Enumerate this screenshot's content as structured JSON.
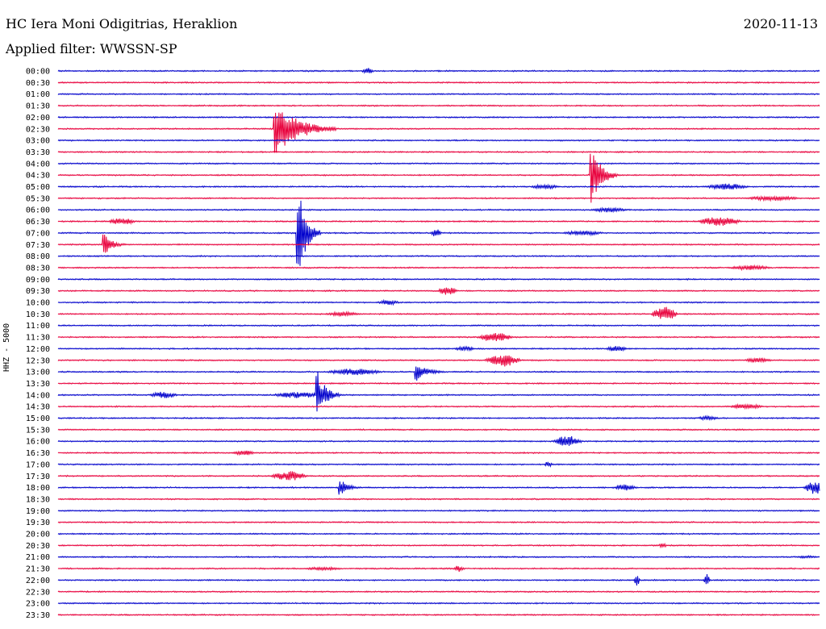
{
  "header": {
    "station": "HC Iera Moni Odigitrias, Heraklion",
    "date": "2020-11-13",
    "filter": "Applied filter: WWSSN-SP"
  },
  "chart_data": {
    "type": "line",
    "title": "HC Iera Moni Odigitrias, Heraklion",
    "ylabel": "HHZ - 5000",
    "time_labels": [
      "00:00",
      "00:30",
      "01:00",
      "01:30",
      "02:00",
      "02:30",
      "03:00",
      "03:30",
      "04:00",
      "04:30",
      "05:00",
      "05:30",
      "06:00",
      "06:30",
      "07:00",
      "07:30",
      "08:00",
      "08:30",
      "09:00",
      "09:30",
      "10:00",
      "10:30",
      "11:00",
      "11:30",
      "12:00",
      "12:30",
      "13:00",
      "13:30",
      "14:00",
      "14:30",
      "15:00",
      "15:30",
      "16:00",
      "16:30",
      "17:00",
      "17:30",
      "18:00",
      "18:30",
      "19:00",
      "19:30",
      "20:00",
      "20:30",
      "21:00",
      "21:30",
      "22:00",
      "22:30",
      "23:00",
      "23:30"
    ],
    "trace_colors": [
      "#0000cc",
      "#e8003c"
    ],
    "events": [
      {
        "row": "00:00",
        "pos": 0.4,
        "amp": 4,
        "dur": 0.015
      },
      {
        "row": "02:30",
        "pos": 0.285,
        "amp": 36,
        "dur": 0.08,
        "big": true
      },
      {
        "row": "04:30",
        "pos": 0.7,
        "amp": 40,
        "dur": 0.035,
        "big": true
      },
      {
        "row": "05:00",
        "pos": 0.62,
        "amp": 3,
        "dur": 0.04
      },
      {
        "row": "05:00",
        "pos": 0.85,
        "amp": 4,
        "dur": 0.06
      },
      {
        "row": "05:30",
        "pos": 0.9,
        "amp": 3,
        "dur": 0.08
      },
      {
        "row": "06:00",
        "pos": 0.7,
        "amp": 3,
        "dur": 0.05
      },
      {
        "row": "06:30",
        "pos": 0.065,
        "amp": 4,
        "dur": 0.04
      },
      {
        "row": "06:30",
        "pos": 0.84,
        "amp": 6,
        "dur": 0.06
      },
      {
        "row": "07:00",
        "pos": 0.315,
        "amp": 60,
        "dur": 0.03,
        "big": true
      },
      {
        "row": "07:00",
        "pos": 0.49,
        "amp": 6,
        "dur": 0.015
      },
      {
        "row": "07:00",
        "pos": 0.66,
        "amp": 3,
        "dur": 0.06
      },
      {
        "row": "07:30",
        "pos": 0.06,
        "amp": 14,
        "dur": 0.03,
        "big": true
      },
      {
        "row": "08:30",
        "pos": 0.88,
        "amp": 3,
        "dur": 0.06
      },
      {
        "row": "09:30",
        "pos": 0.5,
        "amp": 6,
        "dur": 0.025
      },
      {
        "row": "10:00",
        "pos": 0.42,
        "amp": 3,
        "dur": 0.03
      },
      {
        "row": "10:30",
        "pos": 0.78,
        "amp": 9,
        "dur": 0.035
      },
      {
        "row": "10:30",
        "pos": 0.35,
        "amp": 3,
        "dur": 0.05
      },
      {
        "row": "11:30",
        "pos": 0.55,
        "amp": 6,
        "dur": 0.05
      },
      {
        "row": "12:00",
        "pos": 0.52,
        "amp": 3,
        "dur": 0.03
      },
      {
        "row": "12:00",
        "pos": 0.72,
        "amp": 4,
        "dur": 0.03
      },
      {
        "row": "12:30",
        "pos": 0.56,
        "amp": 8,
        "dur": 0.05
      },
      {
        "row": "12:30",
        "pos": 0.9,
        "amp": 3,
        "dur": 0.04
      },
      {
        "row": "13:00",
        "pos": 0.47,
        "amp": 12,
        "dur": 0.04,
        "big": true
      },
      {
        "row": "13:00",
        "pos": 0.35,
        "amp": 4,
        "dur": 0.08
      },
      {
        "row": "14:00",
        "pos": 0.34,
        "amp": 32,
        "dur": 0.03,
        "big": true
      },
      {
        "row": "14:00",
        "pos": 0.12,
        "amp": 4,
        "dur": 0.04
      },
      {
        "row": "14:00",
        "pos": 0.28,
        "amp": 4,
        "dur": 0.07
      },
      {
        "row": "14:30",
        "pos": 0.88,
        "amp": 3,
        "dur": 0.05
      },
      {
        "row": "15:00",
        "pos": 0.84,
        "amp": 3,
        "dur": 0.03
      },
      {
        "row": "16:00",
        "pos": 0.65,
        "amp": 7,
        "dur": 0.04
      },
      {
        "row": "16:30",
        "pos": 0.23,
        "amp": 3,
        "dur": 0.03
      },
      {
        "row": "17:00",
        "pos": 0.64,
        "amp": 4,
        "dur": 0.01
      },
      {
        "row": "17:30",
        "pos": 0.28,
        "amp": 6,
        "dur": 0.05
      },
      {
        "row": "18:00",
        "pos": 0.37,
        "amp": 12,
        "dur": 0.03,
        "big": true
      },
      {
        "row": "18:00",
        "pos": 0.98,
        "amp": 8,
        "dur": 0.03
      },
      {
        "row": "18:00",
        "pos": 0.73,
        "amp": 4,
        "dur": 0.03
      },
      {
        "row": "21:00",
        "pos": 0.97,
        "amp": 2,
        "dur": 0.03
      },
      {
        "row": "21:30",
        "pos": 0.52,
        "amp": 4,
        "dur": 0.015
      },
      {
        "row": "21:30",
        "pos": 0.32,
        "amp": 2,
        "dur": 0.06
      },
      {
        "row": "22:00",
        "pos": 0.758,
        "amp": 8,
        "dur": 0.006
      },
      {
        "row": "22:00",
        "pos": 0.85,
        "amp": 8,
        "dur": 0.006
      },
      {
        "row": "20:30",
        "pos": 0.79,
        "amp": 3,
        "dur": 0.01
      }
    ]
  }
}
